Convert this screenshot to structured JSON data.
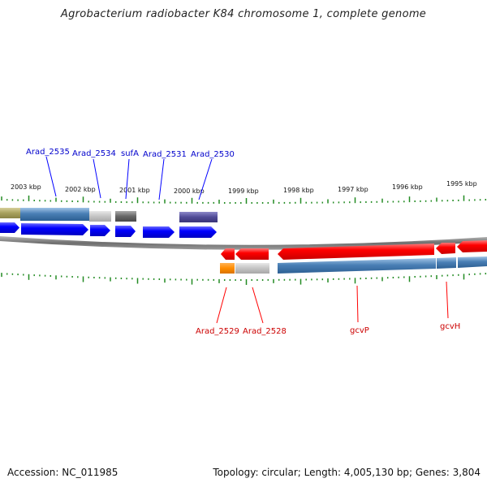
{
  "title": "Agrobacterium radiobacter K84 chromosome 1, complete genome",
  "footer": {
    "accession": "Accession: NC_011985",
    "summary": "Topology: circular; Length: 4,005,130 bp; Genes: 3,804"
  },
  "scale_labels": [
    "2003 kbp",
    "2002 kbp",
    "2001 kbp",
    "2000 kbp",
    "1999 kbp",
    "1998 kbp",
    "1997 kbp",
    "1996 kbp",
    "1995 kbp"
  ],
  "forward_gene_labels": [
    "Arad_2535",
    "Arad_2534",
    "sufA",
    "Arad_2531",
    "Arad_2530"
  ],
  "reverse_gene_labels": [
    "Arad_2529",
    "Arad_2528",
    "gcvP",
    "gcvH"
  ],
  "colors": {
    "forward_gene": "#0000ff",
    "reverse_gene": "#ff0000",
    "forward_label": "#0000cc",
    "reverse_label": "#cc0000",
    "tick": "#228b22",
    "backbone": "#808080",
    "track_blue": "#4a7fb5"
  }
}
